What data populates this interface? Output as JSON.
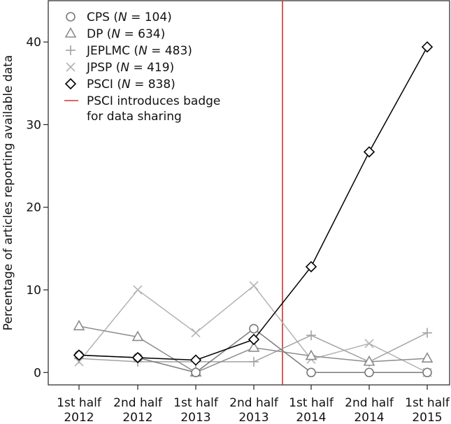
{
  "chart_data": {
    "type": "line",
    "title": "",
    "xlabel": "",
    "ylabel": "Percentage of articles reporting available data",
    "ylim": [
      -1.5,
      45
    ],
    "yticks": [
      0,
      10,
      20,
      30,
      40
    ],
    "categories": [
      [
        "1st half",
        "2012"
      ],
      [
        "2nd half",
        "2012"
      ],
      [
        "1st half",
        "2013"
      ],
      [
        "2nd half",
        "2013"
      ],
      [
        "1st half",
        "2014"
      ],
      [
        "2nd half",
        "2014"
      ],
      [
        "1st half",
        "2015"
      ]
    ],
    "series": [
      {
        "key": "jpsp",
        "name": "JPSP",
        "n_label": "N",
        "n_value": "= 419",
        "marker": "x",
        "color": "#b2b2b2",
        "values": [
          1.3,
          10.0,
          4.8,
          10.5,
          1.6,
          3.5,
          0.0
        ]
      },
      {
        "key": "jeplmc",
        "name": "JEPLMC",
        "n_label": "N",
        "n_value": "= 483",
        "marker": "plus",
        "color": "#a2a2a2",
        "values": [
          1.7,
          1.3,
          1.3,
          1.3,
          4.5,
          1.3,
          4.8
        ]
      },
      {
        "key": "dp",
        "name": "DP",
        "n_label": "N",
        "n_value": "= 634",
        "marker": "triangle",
        "color": "#8c8c8c",
        "values": [
          5.6,
          4.3,
          0.0,
          3.0,
          2.0,
          1.3,
          1.7
        ]
      },
      {
        "key": "cps",
        "name": "CPS",
        "n_label": "N",
        "n_value": "= 104",
        "marker": "circle",
        "color": "#7a7a7a",
        "values": [
          2.1,
          1.8,
          0.0,
          5.3,
          0.0,
          0.0,
          0.0
        ]
      },
      {
        "key": "psci",
        "name": "PSCI",
        "n_label": "N",
        "n_value": "= 838",
        "marker": "diamond",
        "color": "#000000",
        "values": [
          2.1,
          1.8,
          1.5,
          4.0,
          12.8,
          26.7,
          39.4
        ]
      }
    ],
    "legend_order": [
      "cps",
      "dp",
      "jeplmc",
      "jpsp",
      "psci"
    ],
    "vline": {
      "after_category_index": 3,
      "label_lines": [
        "PSCI introduces badge",
        "for data sharing"
      ],
      "color": "#d03030"
    },
    "legend_position": "top-left"
  }
}
